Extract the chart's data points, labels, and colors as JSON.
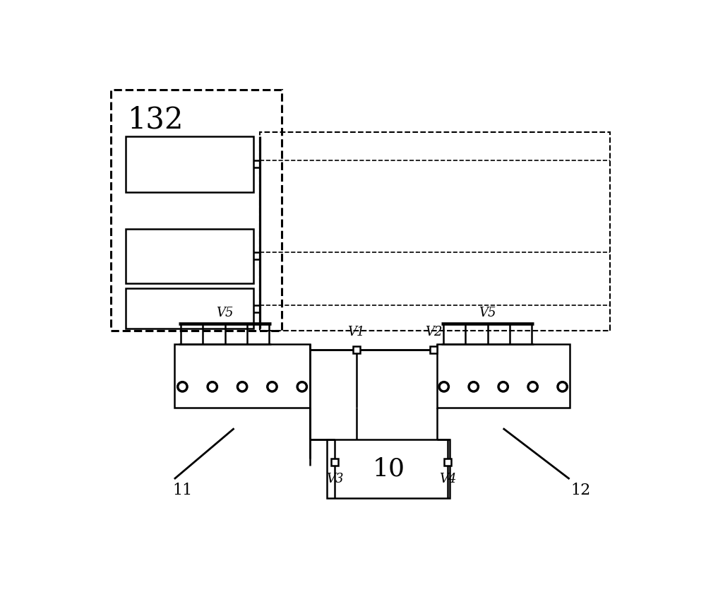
{
  "bg_color": "#ffffff",
  "line_color": "#000000",
  "figsize": [
    10.0,
    8.69
  ],
  "dpi": 100,
  "label_132": "132",
  "label_10": "10",
  "label_11": "11",
  "label_12": "12",
  "label_V1": "V1",
  "label_V2": "V2",
  "label_V3": "V3",
  "label_V4": "V4",
  "label_V5": "V5",
  "n_circles_11": 5,
  "n_circles_12": 5,
  "n_blades_11": 5,
  "n_blades_12": 5
}
